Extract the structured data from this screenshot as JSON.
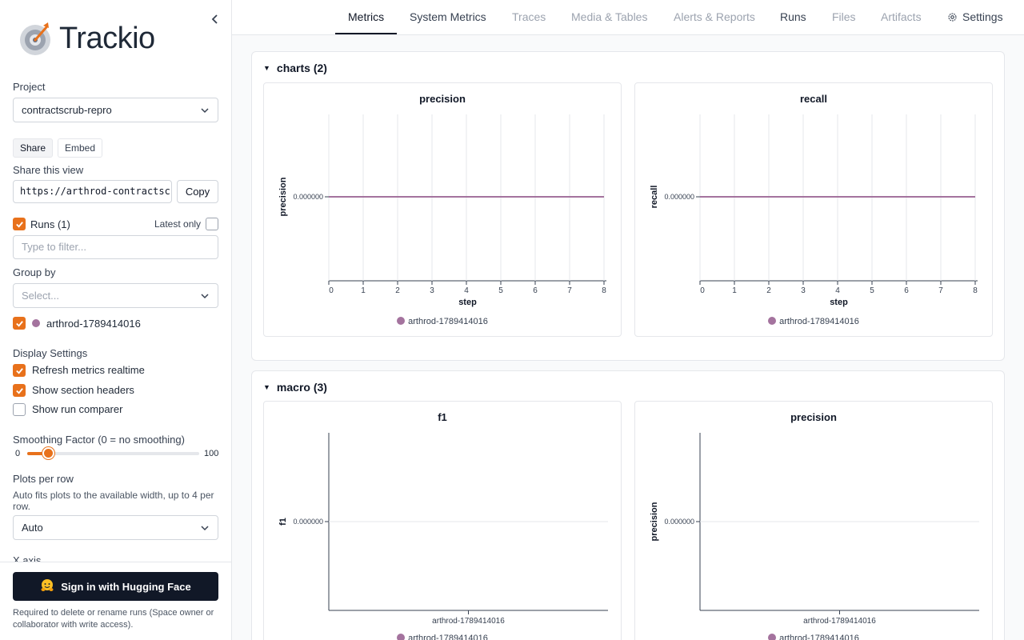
{
  "app": {
    "name": "Trackio"
  },
  "colors": {
    "accent": "#e8711b",
    "run": "#a4739e"
  },
  "sidebar": {
    "project_label": "Project",
    "project_value": "contractscrub-repro",
    "share_tab": "Share",
    "embed_tab": "Embed",
    "share_view_label": "Share this view",
    "share_url": "https://arthrod-contractscrub",
    "copy_label": "Copy",
    "runs_label": "Runs (1)",
    "latest_only_label": "Latest only",
    "filter_placeholder": "Type to filter...",
    "group_by_label": "Group by",
    "group_by_placeholder": "Select...",
    "run_name": "arthrod-1789414016",
    "display_settings_label": "Display Settings",
    "refresh_label": "Refresh metrics realtime",
    "section_headers_label": "Show section headers",
    "run_comparer_label": "Show run comparer",
    "smoothing_label": "Smoothing Factor (0 = no smoothing)",
    "smoothing_min": "0",
    "smoothing_max": "100",
    "smoothing_value": 0.12,
    "plots_per_row_label": "Plots per row",
    "plots_per_row_hint": "Auto fits plots to the available width, up to 4 per row.",
    "plots_per_row_value": "Auto",
    "x_axis_label": "X axis",
    "signin_label": "Sign in with Hugging Face",
    "signin_note": "Required to delete or rename runs (Space owner or collaborator with write access)."
  },
  "nav": {
    "tabs": [
      "Metrics",
      "System Metrics",
      "Traces",
      "Media & Tables",
      "Alerts & Reports",
      "Runs",
      "Files",
      "Artifacts",
      "Settings"
    ],
    "active": "Metrics"
  },
  "sections": [
    {
      "title": "charts (2)"
    },
    {
      "title": "macro (3)"
    }
  ],
  "chart_data": [
    {
      "type": "line",
      "title": "precision",
      "xlabel": "step",
      "ylabel": "precision",
      "xlim": [
        0,
        8
      ],
      "x_ticks": [
        "0",
        "1",
        "2",
        "3",
        "4",
        "5",
        "6",
        "7",
        "8"
      ],
      "y_ticks": [
        "0.000000"
      ],
      "series": [
        {
          "name": "arthrod-1789414016",
          "x": [
            0,
            8
          ],
          "y": [
            0,
            0
          ]
        }
      ]
    },
    {
      "type": "line",
      "title": "recall",
      "xlabel": "step",
      "ylabel": "recall",
      "xlim": [
        0,
        8
      ],
      "x_ticks": [
        "0",
        "1",
        "2",
        "3",
        "4",
        "5",
        "6",
        "7",
        "8"
      ],
      "y_ticks": [
        "0.000000"
      ],
      "series": [
        {
          "name": "arthrod-1789414016",
          "x": [
            0,
            8
          ],
          "y": [
            0,
            0
          ]
        }
      ]
    },
    {
      "type": "bar",
      "title": "f1",
      "xlabel": "",
      "ylabel": "f1",
      "categories": [
        "arthrod-1789414016"
      ],
      "y_ticks": [
        "0.000000"
      ],
      "series": [
        {
          "name": "arthrod-1789414016",
          "values": [
            0
          ]
        }
      ]
    },
    {
      "type": "bar",
      "title": "precision",
      "xlabel": "",
      "ylabel": "precision",
      "categories": [
        "arthrod-1789414016"
      ],
      "y_ticks": [
        "0.000000"
      ],
      "series": [
        {
          "name": "arthrod-1789414016",
          "values": [
            0
          ]
        }
      ]
    }
  ]
}
